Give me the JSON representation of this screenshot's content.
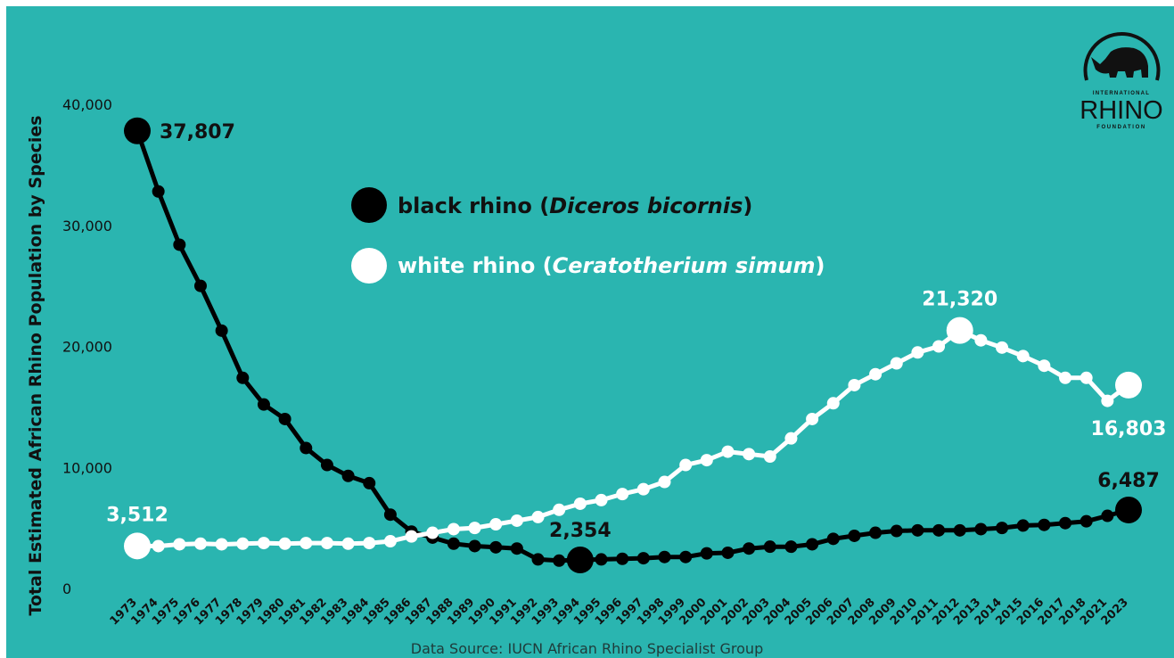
{
  "colors": {
    "background": "#2ab5b0",
    "black_series": "#000000",
    "white_series": "#ffffff"
  },
  "source_note": "Data Source: IUCN African Rhino Specialist Group",
  "logo": {
    "icon": "rhino-icon",
    "line1": "INTERNATIONAL",
    "line2": "RHINO",
    "line3": "FOUNDATION"
  },
  "legend": {
    "black": {
      "prefix": "black rhino (",
      "italic": "Diceros bicornis",
      "suffix": ")"
    },
    "white": {
      "prefix": "white rhino (",
      "italic": "Ceratotherium simum",
      "suffix": ")"
    }
  },
  "chart_data": {
    "type": "line",
    "ylabel": "Total Estimated African Rhino Population by Species",
    "xlabel": "",
    "ylim": [
      0,
      40000
    ],
    "yticks": [
      {
        "value": 0,
        "label": "0"
      },
      {
        "value": 10000,
        "label": "10,000"
      },
      {
        "value": 20000,
        "label": "20,000"
      },
      {
        "value": 30000,
        "label": "30,000"
      },
      {
        "value": 40000,
        "label": "40,000"
      }
    ],
    "categories": [
      "1973",
      "1974",
      "1975",
      "1976",
      "1977",
      "1978",
      "1979",
      "1980",
      "1981",
      "1982",
      "1983",
      "1984",
      "1985",
      "1986",
      "1987",
      "1988",
      "1989",
      "1990",
      "1991",
      "1992",
      "1993",
      "1994",
      "1995",
      "1996",
      "1997",
      "1998",
      "1999",
      "2000",
      "2001",
      "2002",
      "2003",
      "2004",
      "2005",
      "2006",
      "2007",
      "2008",
      "2009",
      "2010",
      "2011",
      "2012",
      "2013",
      "2014",
      "2015",
      "2016",
      "2017",
      "2018",
      "2021",
      "2023"
    ],
    "series": [
      {
        "name": "black rhino (Diceros bicornis)",
        "color": "#000000",
        "values": [
          37807,
          32800,
          28400,
          25000,
          21300,
          17400,
          15200,
          14000,
          11600,
          10200,
          9300,
          8700,
          6100,
          4700,
          4200,
          3700,
          3500,
          3400,
          3300,
          2400,
          2300,
          2354,
          2400,
          2450,
          2500,
          2600,
          2600,
          2900,
          2950,
          3300,
          3450,
          3450,
          3650,
          4100,
          4350,
          4600,
          4750,
          4800,
          4800,
          4800,
          4900,
          5000,
          5200,
          5250,
          5400,
          5550,
          6000,
          6487
        ],
        "annotations": [
          {
            "index": 0,
            "label": "37,807"
          },
          {
            "index": 21,
            "label": "2,354"
          },
          {
            "index": 47,
            "label": "6,487"
          }
        ]
      },
      {
        "name": "white rhino (Ceratotherium simum)",
        "color": "#ffffff",
        "values": [
          3512,
          3500,
          3650,
          3700,
          3650,
          3700,
          3750,
          3700,
          3750,
          3750,
          3700,
          3750,
          3900,
          4300,
          4600,
          4900,
          5000,
          5300,
          5600,
          5900,
          6500,
          7000,
          7300,
          7800,
          8200,
          8800,
          10200,
          10600,
          11300,
          11100,
          10900,
          12400,
          14000,
          15300,
          16800,
          17700,
          18600,
          19500,
          20000,
          21320,
          20500,
          19900,
          19200,
          18400,
          17400,
          17400,
          15500,
          16803
        ],
        "annotations": [
          {
            "index": 0,
            "label": "3,512"
          },
          {
            "index": 39,
            "label": "21,320"
          },
          {
            "index": 47,
            "label": "16,803"
          }
        ]
      }
    ],
    "legend_position": "top-left",
    "grid": false
  }
}
